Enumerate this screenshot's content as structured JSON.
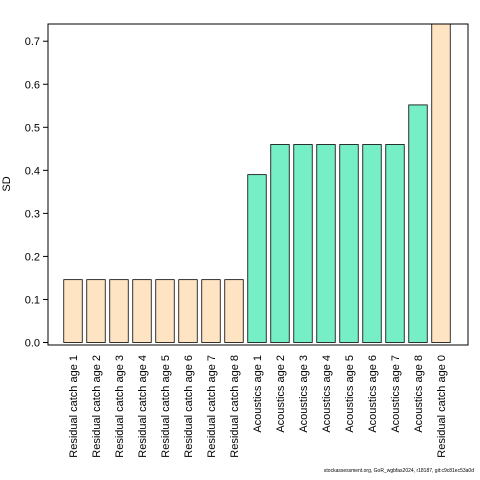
{
  "chart_data": {
    "type": "bar",
    "ylabel": "SD",
    "ylim": [
      0,
      0.74
    ],
    "yticks": [
      0.0,
      0.1,
      0.2,
      0.3,
      0.4,
      0.5,
      0.6,
      0.7
    ],
    "ytick_labels": [
      "0.0",
      "0.1",
      "0.2",
      "0.3",
      "0.4",
      "0.5",
      "0.6",
      "0.7"
    ],
    "grid": false,
    "categories": [
      "Residual catch age 1",
      "Residual catch age 2",
      "Residual catch age 3",
      "Residual catch age 4",
      "Residual catch age 5",
      "Residual catch age 6",
      "Residual catch age 7",
      "Residual catch age 8",
      "Acoustics age 1",
      "Acoustics age 2",
      "Acoustics age 3",
      "Acoustics age 4",
      "Acoustics age 5",
      "Acoustics age 6",
      "Acoustics age 7",
      "Acoustics age 8",
      "Residual catch age 0"
    ],
    "values": [
      0.146,
      0.146,
      0.146,
      0.146,
      0.146,
      0.146,
      0.146,
      0.146,
      0.39,
      0.46,
      0.46,
      0.46,
      0.46,
      0.46,
      0.46,
      0.552,
      0.74
    ],
    "bar_colors": [
      "#FFE4C4",
      "#FFE4C4",
      "#FFE4C4",
      "#FFE4C4",
      "#FFE4C4",
      "#FFE4C4",
      "#FFE4C4",
      "#FFE4C4",
      "#76EEC6",
      "#76EEC6",
      "#76EEC6",
      "#76EEC6",
      "#76EEC6",
      "#76EEC6",
      "#76EEC6",
      "#76EEC6",
      "#FFE4C4"
    ]
  },
  "footer_text": "stockassessment.org, GoR_wgbfas2024, r18187, git:c9c81ec53a0d"
}
